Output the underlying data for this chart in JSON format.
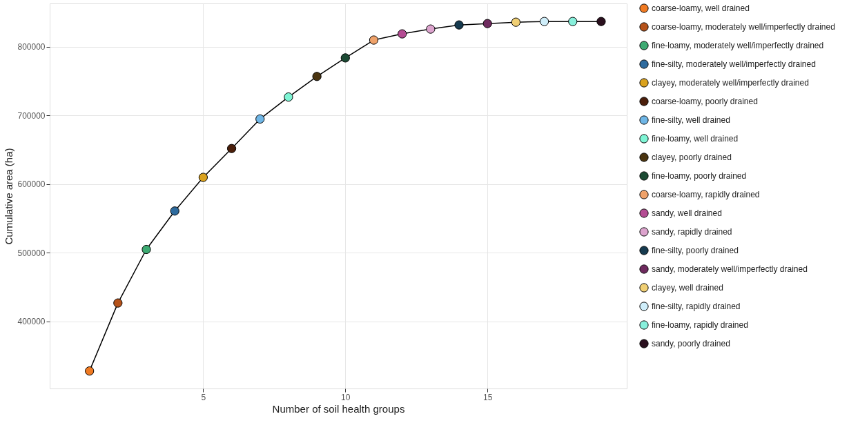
{
  "chart_data": {
    "type": "scatter",
    "xlabel": "Number of soil health groups",
    "ylabel": "Cumulative area (ha)",
    "xlim": [
      -0.4,
      19.9
    ],
    "ylim": [
      302500,
      863300
    ],
    "xticks": [
      5,
      10,
      15
    ],
    "yticks": [
      400000,
      500000,
      600000,
      700000,
      800000
    ],
    "grid": true,
    "legend": "right",
    "marker": "circle",
    "series": [
      {
        "type": "line",
        "color": "#000000",
        "marker": "none",
        "line_style": "solid",
        "x": [
          1,
          2,
          3,
          4,
          5,
          6,
          7,
          8,
          9,
          10,
          11,
          12,
          13,
          14,
          15,
          16,
          17,
          18,
          19
        ],
        "values": [
          328000,
          427000,
          505000,
          561000,
          610000,
          652000,
          695000,
          727000,
          757000,
          784000,
          810000,
          819000,
          826000,
          832000,
          834000,
          836000,
          837000,
          837000,
          837000
        ]
      },
      {
        "name": "coarse-loamy, well drained",
        "color": "#f07a22",
        "x": [
          1
        ],
        "values": [
          328000
        ]
      },
      {
        "name": "coarse-loamy, moderately well/imperfectly drained",
        "color": "#b5521a",
        "x": [
          2
        ],
        "values": [
          427000
        ]
      },
      {
        "name": "fine-loamy, moderately well/imperfectly drained",
        "color": "#3daa72",
        "x": [
          3
        ],
        "values": [
          505000
        ]
      },
      {
        "name": "fine-silty, moderately well/imperfectly drained",
        "color": "#2e6b9e",
        "x": [
          4
        ],
        "values": [
          561000
        ]
      },
      {
        "name": "clayey, moderately well/imperfectly drained",
        "color": "#daa21e",
        "x": [
          5
        ],
        "values": [
          610000
        ]
      },
      {
        "name": "coarse-loamy, poorly drained",
        "color": "#4a1e0a",
        "x": [
          6
        ],
        "values": [
          652000
        ]
      },
      {
        "name": "fine-silty, well drained",
        "color": "#6fb6e6",
        "x": [
          7
        ],
        "values": [
          695000
        ]
      },
      {
        "name": "fine-loamy, well drained",
        "color": "#7ff5d5",
        "x": [
          8
        ],
        "values": [
          727000
        ]
      },
      {
        "name": "clayey, poorly drained",
        "color": "#4a3410",
        "x": [
          9
        ],
        "values": [
          757000
        ]
      },
      {
        "name": "fine-loamy, poorly drained",
        "color": "#1b4a33",
        "x": [
          10
        ],
        "values": [
          784000
        ]
      },
      {
        "name": "coarse-loamy, rapidly drained",
        "color": "#efa26a",
        "x": [
          11
        ],
        "values": [
          810000
        ]
      },
      {
        "name": "sandy, well drained",
        "color": "#b44c93",
        "x": [
          12
        ],
        "values": [
          819000
        ]
      },
      {
        "name": "sandy, rapidly drained",
        "color": "#dca3cd",
        "x": [
          13
        ],
        "values": [
          826000
        ]
      },
      {
        "name": "fine-silty, poorly drained",
        "color": "#163a4f",
        "x": [
          14
        ],
        "values": [
          832000
        ]
      },
      {
        "name": "sandy, moderately well/imperfectly drained",
        "color": "#6e2a5e",
        "x": [
          15
        ],
        "values": [
          834000
        ]
      },
      {
        "name": "clayey, well drained",
        "color": "#f0cf74",
        "x": [
          16
        ],
        "values": [
          836000
        ]
      },
      {
        "name": "fine-silty, rapidly drained",
        "color": "#cfeefa",
        "x": [
          17
        ],
        "values": [
          837000
        ]
      },
      {
        "name": "fine-loamy, rapidly drained",
        "color": "#88f0dc",
        "x": [
          18
        ],
        "values": [
          837000
        ]
      },
      {
        "name": "sandy, poorly drained",
        "color": "#2a0f1e",
        "x": [
          19
        ],
        "values": [
          837000
        ]
      }
    ]
  }
}
